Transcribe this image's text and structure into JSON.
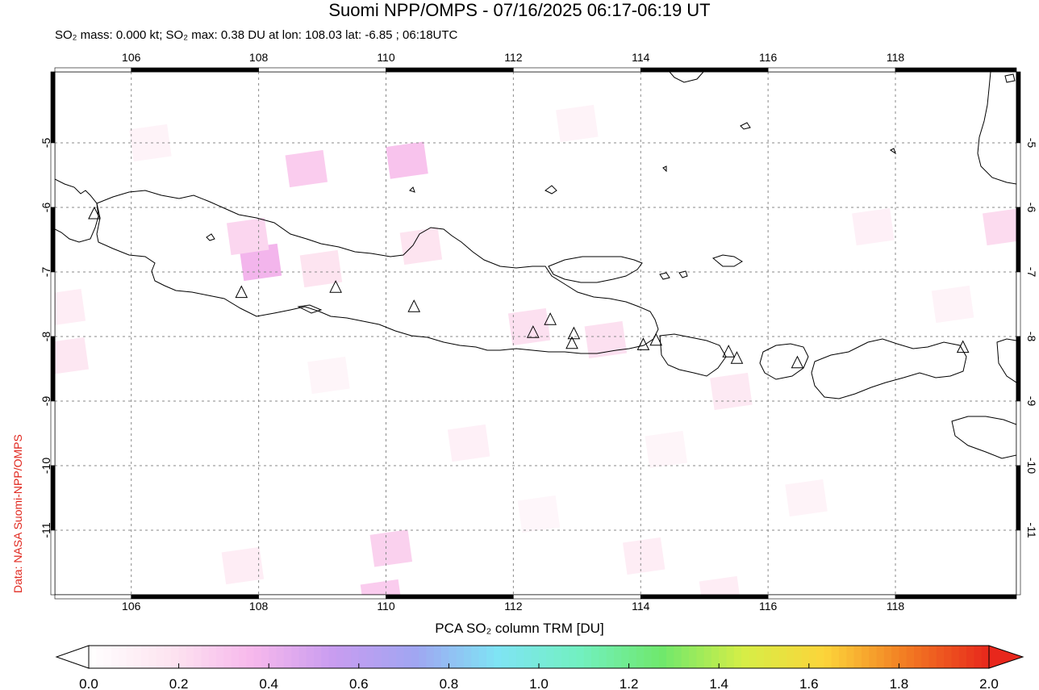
{
  "header": {
    "title": "Suomi NPP/OMPS - 07/16/2025 06:17-06:19 UT",
    "subtitle": "SO₂ mass: 0.000 kt; SO₂ max: 0.38 DU at lon: 108.03 lat: -6.85 ; 06:18UTC"
  },
  "credit": "Data: NASA Suomi-NPP/OMPS",
  "map": {
    "lon_range": [
      104.8,
      119.9
    ],
    "lat_range": [
      -12.0,
      -3.9
    ],
    "lon_ticks": [
      106,
      108,
      110,
      112,
      114,
      116,
      118
    ],
    "lon_tick_labels": [
      "106",
      "108",
      "110",
      "112",
      "114",
      "116",
      "118"
    ],
    "lat_ticks": [
      -5,
      -6,
      -7,
      -8,
      -9,
      -10,
      -11
    ],
    "lat_tick_labels": [
      "-5",
      "-6",
      "-7",
      "-8",
      "-9",
      "-10",
      "-11"
    ],
    "gridlines": true,
    "colors": {
      "coast": "#000000",
      "grid": "#8a8a8a",
      "volcano": "#000000"
    },
    "volcanoes": [
      {
        "lon": 105.42,
        "lat": -6.1
      },
      {
        "lon": 107.73,
        "lat": -7.32
      },
      {
        "lon": 109.21,
        "lat": -7.24
      },
      {
        "lon": 110.44,
        "lat": -7.54
      },
      {
        "lon": 112.31,
        "lat": -7.94
      },
      {
        "lon": 112.58,
        "lat": -7.74
      },
      {
        "lon": 112.95,
        "lat": -7.96
      },
      {
        "lon": 112.92,
        "lat": -8.11
      },
      {
        "lon": 114.04,
        "lat": -8.13
      },
      {
        "lon": 114.24,
        "lat": -8.06
      },
      {
        "lon": 115.38,
        "lat": -8.24
      },
      {
        "lon": 115.51,
        "lat": -8.34
      },
      {
        "lon": 116.46,
        "lat": -8.41
      },
      {
        "lon": 119.06,
        "lat": -8.17
      }
    ],
    "so2_cells": [
      {
        "lon": 108.03,
        "lat": -6.85,
        "du": 0.38
      },
      {
        "lon": 110.33,
        "lat": -5.27,
        "du": 0.32
      },
      {
        "lon": 108.75,
        "lat": -5.4,
        "du": 0.28
      },
      {
        "lon": 110.08,
        "lat": -11.28,
        "du": 0.26
      },
      {
        "lon": 109.93,
        "lat": -12.05,
        "du": 0.28
      },
      {
        "lon": 107.83,
        "lat": -6.45,
        "du": 0.24
      },
      {
        "lon": 119.7,
        "lat": -6.3,
        "du": 0.22
      },
      {
        "lon": 112.25,
        "lat": -7.85,
        "du": 0.2
      },
      {
        "lon": 113.45,
        "lat": -8.05,
        "du": 0.2
      },
      {
        "lon": 110.55,
        "lat": -6.6,
        "du": 0.18
      },
      {
        "lon": 108.98,
        "lat": -6.95,
        "du": 0.18
      },
      {
        "lon": 105.0,
        "lat": -8.3,
        "du": 0.16
      },
      {
        "lon": 115.42,
        "lat": -8.85,
        "du": 0.15
      },
      {
        "lon": 114.05,
        "lat": -11.4,
        "du": 0.12
      },
      {
        "lon": 115.25,
        "lat": -12.0,
        "du": 0.12
      },
      {
        "lon": 107.75,
        "lat": -11.55,
        "du": 0.12
      },
      {
        "lon": 111.3,
        "lat": -9.65,
        "du": 0.1
      },
      {
        "lon": 117.65,
        "lat": -6.3,
        "du": 0.1
      },
      {
        "lon": 113.0,
        "lat": -4.7,
        "du": 0.08
      },
      {
        "lon": 106.3,
        "lat": -5.0,
        "du": 0.08
      },
      {
        "lon": 116.6,
        "lat": -10.5,
        "du": 0.08
      },
      {
        "lon": 118.9,
        "lat": -7.5,
        "du": 0.08
      },
      {
        "lon": 104.95,
        "lat": -7.55,
        "du": 0.12
      },
      {
        "lon": 114.4,
        "lat": -9.75,
        "du": 0.07
      },
      {
        "lon": 112.4,
        "lat": -10.75,
        "du": 0.06
      },
      {
        "lon": 109.1,
        "lat": -8.6,
        "du": 0.07
      }
    ]
  },
  "colorbar": {
    "title": "PCA SO₂ column TRM [DU]",
    "ticks": [
      "0.0",
      "0.2",
      "0.4",
      "0.6",
      "0.8",
      "1.0",
      "1.2",
      "1.4",
      "1.6",
      "1.8",
      "2.0"
    ],
    "range": [
      0.0,
      2.0
    ],
    "colors": [
      "#ffffff",
      "#fde4f0",
      "#f7b8ec",
      "#c89cf0",
      "#a0a6f2",
      "#7fe4f4",
      "#72f0c0",
      "#6fe86c",
      "#d6ee46",
      "#fcd43a",
      "#f27a22",
      "#e8271c"
    ]
  }
}
